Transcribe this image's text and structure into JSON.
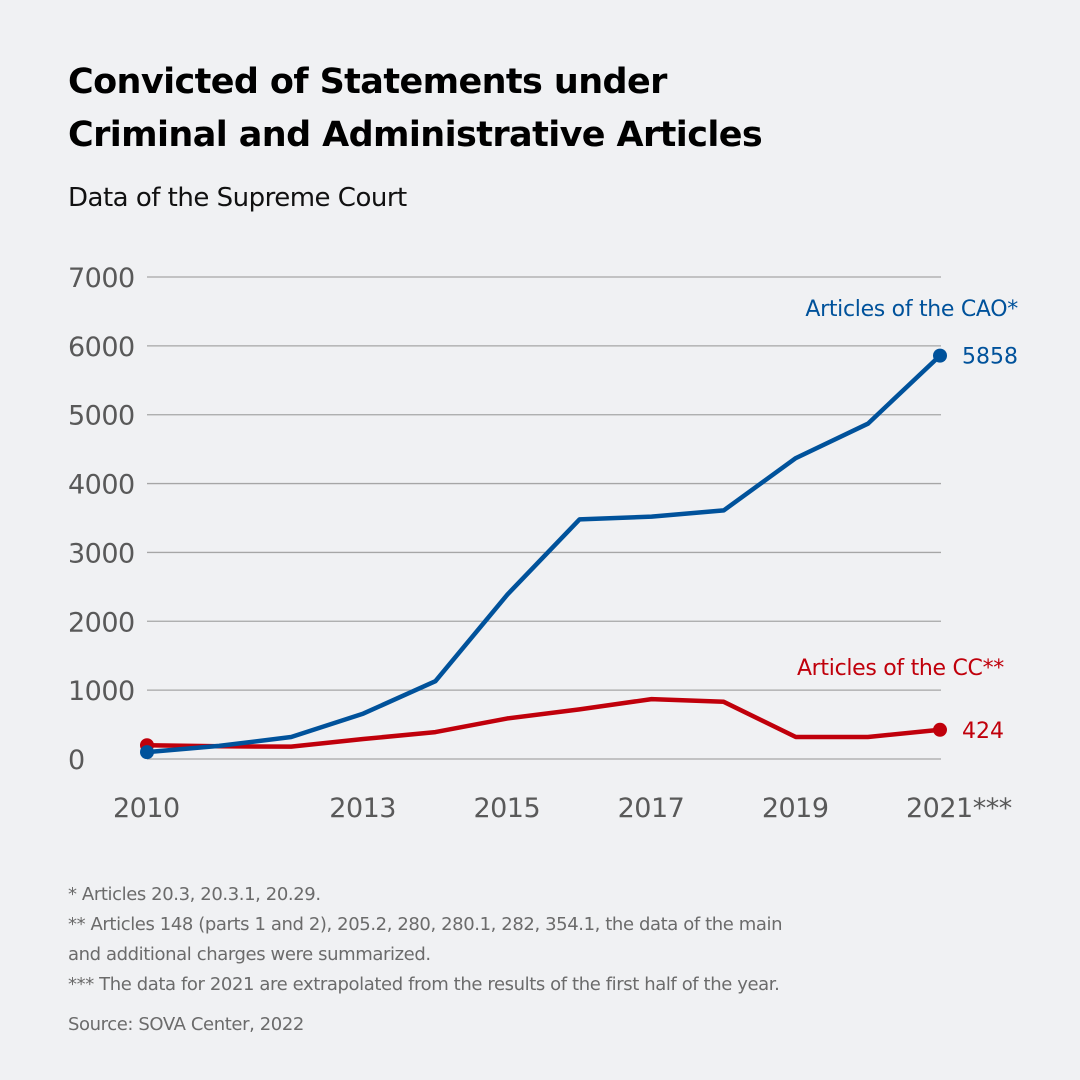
{
  "header": {
    "title_line1": "Convicted of Statements under",
    "title_line2": "Criminal and Administrative Articles",
    "subtitle": "Data of the Supreme Court"
  },
  "chart_data": {
    "type": "line",
    "title": "Convicted of Statements under Criminal and Administrative Articles",
    "subtitle": "Data of the Supreme Court",
    "xlabel": "",
    "ylabel": "",
    "x": [
      2010,
      2011,
      2012,
      2013,
      2014,
      2015,
      2016,
      2017,
      2018,
      2019,
      2020,
      2021
    ],
    "x_tick_labels": [
      {
        "x": 2010,
        "label": "2010"
      },
      {
        "x": 2013,
        "label": "2013"
      },
      {
        "x": 2015,
        "label": "2015"
      },
      {
        "x": 2017,
        "label": "2017"
      },
      {
        "x": 2019,
        "label": "2019"
      },
      {
        "x": 2021,
        "label": "2021***"
      }
    ],
    "y_ticks": [
      0,
      1000,
      2000,
      3000,
      4000,
      5000,
      6000,
      7000
    ],
    "ylim": [
      0,
      7000
    ],
    "xlim": [
      2010,
      2021
    ],
    "grid": "horizontal",
    "legend": "direct-labels-right",
    "series": [
      {
        "name": "Articles of the CAO*",
        "color": "#00529b",
        "values": [
          100,
          190,
          320,
          660,
          1130,
          2390,
          3480,
          3520,
          3610,
          4370,
          4870,
          5858
        ],
        "end_label": "5858"
      },
      {
        "name": "Articles of the CC**",
        "color": "#c0000b",
        "values": [
          200,
          185,
          180,
          290,
          390,
          590,
          720,
          870,
          830,
          320,
          320,
          424
        ],
        "end_label": "424"
      }
    ]
  },
  "footnotes": [
    "* Articles 20.3, 20.3.1, 20.29.",
    "** Articles 148 (parts 1 and 2), 205.2, 280, 280.1, 282, 354.1, the data of the main",
    "and additional charges were summarized.",
    "*** The data for 2021 are extrapolated from the results of the first half of the year."
  ],
  "source": "Source: SOVA Center, 2022"
}
